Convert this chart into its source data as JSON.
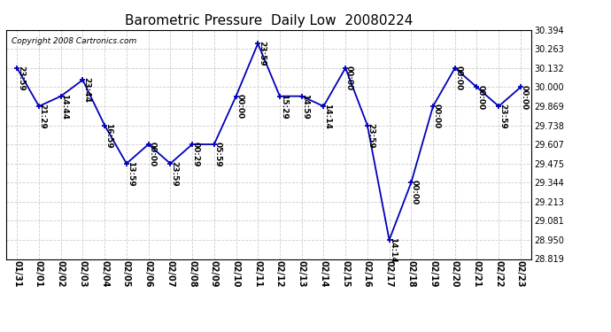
{
  "title": "Barometric Pressure  Daily Low  20080224",
  "copyright": "Copyright 2008 Cartronics.com",
  "x_labels": [
    "01/31",
    "02/01",
    "02/02",
    "02/03",
    "02/04",
    "02/05",
    "02/06",
    "02/07",
    "02/08",
    "02/09",
    "02/10",
    "02/11",
    "02/12",
    "02/13",
    "02/14",
    "02/15",
    "02/16",
    "02/17",
    "02/18",
    "02/19",
    "02/20",
    "02/21",
    "02/22",
    "02/23"
  ],
  "y_values": [
    30.132,
    29.869,
    29.938,
    30.05,
    29.738,
    29.475,
    29.607,
    29.475,
    29.607,
    29.607,
    29.938,
    30.3,
    29.938,
    29.938,
    29.869,
    30.132,
    29.738,
    28.95,
    29.344,
    29.869,
    30.132,
    30.0,
    29.869,
    30.0
  ],
  "point_labels": [
    "23:59",
    "21:29",
    "14:44",
    "23:44",
    "16:59",
    "13:59",
    "00:00",
    "23:59",
    "00:29",
    "05:59",
    "00:00",
    "23:59",
    "15:29",
    "14:59",
    "14:14",
    "00:00",
    "23:59",
    "14:14",
    "00:00",
    "00:00",
    "00:00",
    "00:00",
    "23:59",
    "00:00"
  ],
  "line_color": "#0000bb",
  "marker_color": "#0000bb",
  "background_color": "#ffffff",
  "plot_bg_color": "#ffffff",
  "grid_color": "#cccccc",
  "ylim_min": 28.819,
  "ylim_max": 30.394,
  "yticks": [
    28.819,
    28.95,
    29.081,
    29.213,
    29.344,
    29.475,
    29.607,
    29.738,
    29.869,
    30.0,
    30.132,
    30.263,
    30.394
  ],
  "title_fontsize": 11,
  "label_fontsize": 6.5,
  "tick_fontsize": 7,
  "copyright_fontsize": 6.5
}
